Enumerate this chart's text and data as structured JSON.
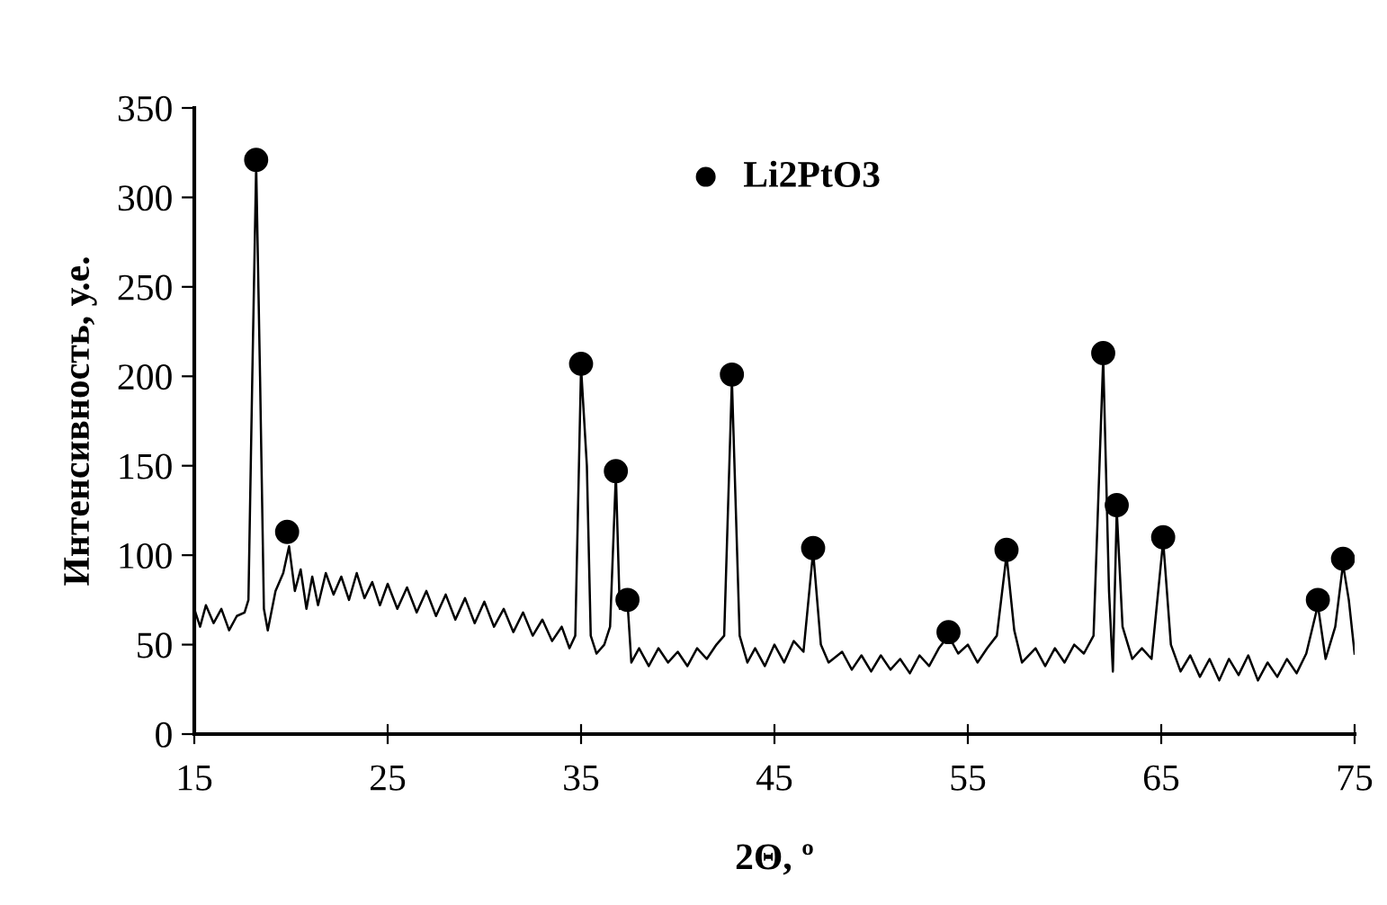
{
  "chart_data": {
    "type": "line",
    "xlabel": "2Θ, º",
    "ylabel": "Интенсивность, у.е.",
    "xlim": [
      15,
      75
    ],
    "xticks": [
      15,
      25,
      35,
      45,
      55,
      65,
      75
    ],
    "ylim": [
      0,
      350
    ],
    "yticks": [
      0,
      50,
      100,
      150,
      200,
      250,
      300,
      350
    ],
    "grid": false,
    "legend": "top",
    "series": [
      {
        "color": "#000000",
        "marker": "none",
        "x": [
          15,
          15.3,
          15.6,
          16,
          16.4,
          16.8,
          17.2,
          17.6,
          17.8,
          18.0,
          18.2,
          18.4,
          18.6,
          18.8,
          19.2,
          19.6,
          19.9,
          20.2,
          20.5,
          20.8,
          21.1,
          21.4,
          21.8,
          22.2,
          22.6,
          23.0,
          23.4,
          23.8,
          24.2,
          24.6,
          25.0,
          25.5,
          26.0,
          26.5,
          27.0,
          27.5,
          28.0,
          28.5,
          29.0,
          29.5,
          30.0,
          30.5,
          31.0,
          31.5,
          32.0,
          32.5,
          33.0,
          33.5,
          34.0,
          34.4,
          34.7,
          35.0,
          35.3,
          35.5,
          35.8,
          36.2,
          36.5,
          36.8,
          37.0,
          37.4,
          37.6,
          38.0,
          38.5,
          39.0,
          39.5,
          40.0,
          40.5,
          41.0,
          41.5,
          42.0,
          42.4,
          42.8,
          43.2,
          43.6,
          44.0,
          44.5,
          45.0,
          45.5,
          46.0,
          46.5,
          47.0,
          47.4,
          47.8,
          48.5,
          49.0,
          49.5,
          50.0,
          50.5,
          51.0,
          51.5,
          52.0,
          52.5,
          53.0,
          53.5,
          54.0,
          54.5,
          55.0,
          55.5,
          56.0,
          56.5,
          57.0,
          57.4,
          57.8,
          58.5,
          59.0,
          59.5,
          60.0,
          60.5,
          61.0,
          61.5,
          62.0,
          62.3,
          62.5,
          62.7,
          63.0,
          63.5,
          64.0,
          64.5,
          65.1,
          65.5,
          66.0,
          66.5,
          67.0,
          67.5,
          68.0,
          68.5,
          69.0,
          69.5,
          70.0,
          70.5,
          71.0,
          71.5,
          72.0,
          72.5,
          73.1,
          73.5,
          74.0,
          74.4,
          74.7,
          75
        ],
        "values": [
          70,
          60,
          72,
          62,
          70,
          58,
          66,
          68,
          75,
          200,
          318,
          200,
          70,
          58,
          80,
          90,
          105,
          80,
          92,
          70,
          88,
          72,
          90,
          78,
          88,
          75,
          90,
          76,
          85,
          72,
          84,
          70,
          82,
          68,
          80,
          66,
          78,
          64,
          76,
          62,
          74,
          60,
          70,
          57,
          68,
          55,
          64,
          52,
          60,
          48,
          55,
          205,
          150,
          55,
          45,
          50,
          60,
          145,
          70,
          74,
          40,
          48,
          38,
          48,
          40,
          46,
          38,
          48,
          42,
          50,
          55,
          198,
          55,
          40,
          48,
          38,
          50,
          40,
          52,
          46,
          102,
          50,
          40,
          46,
          36,
          44,
          35,
          44,
          36,
          42,
          34,
          44,
          38,
          48,
          55,
          45,
          50,
          40,
          48,
          55,
          100,
          58,
          40,
          48,
          38,
          48,
          40,
          50,
          45,
          55,
          210,
          80,
          35,
          125,
          60,
          42,
          48,
          42,
          108,
          50,
          35,
          44,
          32,
          42,
          30,
          42,
          33,
          44,
          30,
          40,
          32,
          42,
          34,
          45,
          72,
          42,
          60,
          95,
          75,
          45
        ]
      },
      {
        "type": "scatter",
        "name": "Li2PtO3",
        "color": "#000000",
        "marker": "circle",
        "x": [
          18.2,
          19.8,
          35.0,
          36.8,
          37.4,
          42.8,
          47.0,
          54.0,
          57.0,
          62.0,
          62.7,
          65.1,
          73.1,
          74.4
        ],
        "values": [
          321,
          113,
          207,
          147,
          75,
          201,
          104,
          57,
          103,
          213,
          128,
          110,
          75,
          98
        ]
      }
    ]
  }
}
